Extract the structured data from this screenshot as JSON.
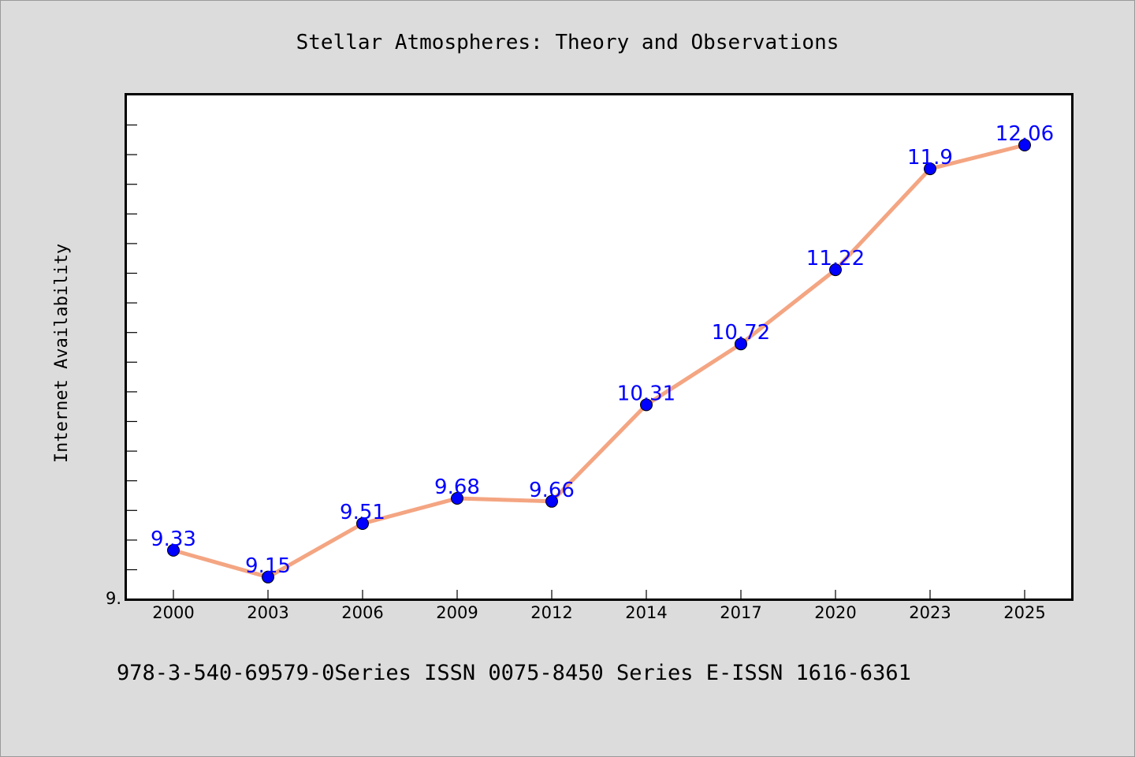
{
  "chart_data": {
    "type": "line",
    "title": "Stellar Atmospheres: Theory and Observations",
    "xlabel": "",
    "ylabel": "Internet Availability",
    "categories": [
      "2000",
      "2003",
      "2006",
      "2009",
      "2012",
      "2014",
      "2017",
      "2020",
      "2023",
      "2025"
    ],
    "series": [
      {
        "values": [
          9.33,
          9.15,
          9.51,
          9.68,
          9.66,
          10.31,
          10.72,
          11.22,
          11.9,
          12.06
        ]
      }
    ],
    "data_labels": [
      "9.33",
      "9.15",
      "9.51",
      "9.68",
      "9.66",
      "10.31",
      "10.72",
      "11.22",
      "11.9",
      "12.06"
    ],
    "ylim": [
      9.0,
      12.4
    ],
    "y_tick_labels": [
      "9."
    ],
    "grid": false,
    "legend": "none",
    "line_color": "#f4a582",
    "marker_color": "#0000ff",
    "label_color": "#0000ff",
    "plot_background": "#ffffff",
    "page_background": "#dcdcdc"
  },
  "footer": {
    "text": "978-3-540-69579-0Series ISSN 0075-8450 Series E-ISSN 1616-6361"
  }
}
